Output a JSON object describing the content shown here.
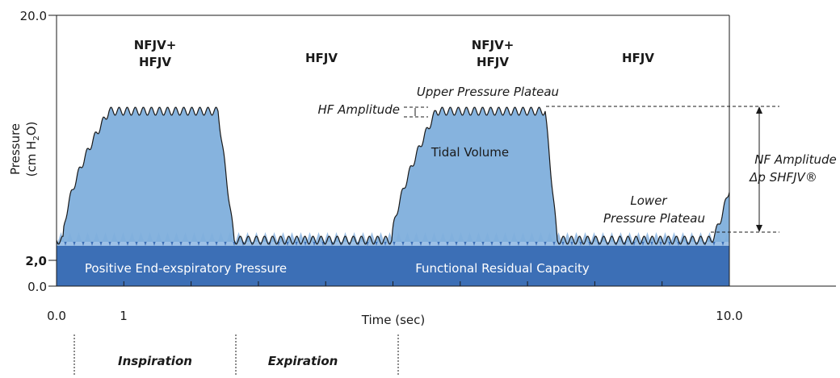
{
  "y_axis": {
    "label": [
      "Pressure",
      "(cm H",
      "2",
      "O)"
    ],
    "ticks": [
      "20.0",
      "2,0",
      "0.0"
    ]
  },
  "x_axis": {
    "label": "Time (sec)",
    "ticks": [
      "0.0",
      "1",
      "10.0"
    ]
  },
  "phases": [
    "Inspiration",
    "Expiration"
  ],
  "regions": [
    {
      "lines": [
        "NFJV+",
        "HFJV"
      ]
    },
    {
      "lines": [
        "HFJV"
      ]
    },
    {
      "lines": [
        "NFJV+",
        "HFJV"
      ]
    },
    {
      "lines": [
        "HFJV"
      ]
    }
  ],
  "annotations": {
    "upper_plateau": "Upper Pressure Plateau",
    "hf_amplitude": "HF Amplitude",
    "tidal_volume": "Tidal Volume",
    "nf_amplitude": [
      "NF Amplitude",
      "Δp SHFJV®"
    ],
    "lower_plateau": [
      "Lower",
      "Pressure Plateau"
    ],
    "peep": "Positive End-exspiratory Pressure",
    "frc": "Functional Residual Capacity"
  }
}
